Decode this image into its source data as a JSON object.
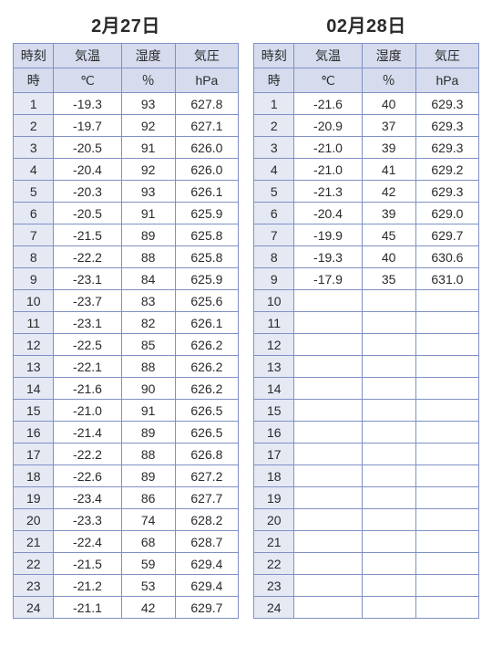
{
  "colors": {
    "border": "#7f91c4",
    "header_bg": "#d6dcee",
    "row_header_bg": "#e5e9f4",
    "text": "#2a2a2a",
    "background": "#ffffff"
  },
  "typography": {
    "title_fontsize_pt": 15,
    "cell_fontsize_pt": 10.5,
    "font_family": "Helvetica / Hiragino sans"
  },
  "columns": [
    {
      "key": "hour",
      "label": "時刻",
      "unit": "時",
      "width_pct": 18,
      "align": "center"
    },
    {
      "key": "temp",
      "label": "気温",
      "unit": "℃",
      "width_pct": 30,
      "align": "center"
    },
    {
      "key": "hum",
      "label": "湿度",
      "unit": "％",
      "width_pct": 24,
      "align": "center"
    },
    {
      "key": "press",
      "label": "気圧",
      "unit": "hPa",
      "width_pct": 28,
      "align": "center"
    }
  ],
  "hours_per_day": 24,
  "days": [
    {
      "title": "2月27日",
      "rows": [
        {
          "hour": 1,
          "temp": "-19.3",
          "hum": "93",
          "press": "627.8"
        },
        {
          "hour": 2,
          "temp": "-19.7",
          "hum": "92",
          "press": "627.1"
        },
        {
          "hour": 3,
          "temp": "-20.5",
          "hum": "91",
          "press": "626.0"
        },
        {
          "hour": 4,
          "temp": "-20.4",
          "hum": "92",
          "press": "626.0"
        },
        {
          "hour": 5,
          "temp": "-20.3",
          "hum": "93",
          "press": "626.1"
        },
        {
          "hour": 6,
          "temp": "-20.5",
          "hum": "91",
          "press": "625.9"
        },
        {
          "hour": 7,
          "temp": "-21.5",
          "hum": "89",
          "press": "625.8"
        },
        {
          "hour": 8,
          "temp": "-22.2",
          "hum": "88",
          "press": "625.8"
        },
        {
          "hour": 9,
          "temp": "-23.1",
          "hum": "84",
          "press": "625.9"
        },
        {
          "hour": 10,
          "temp": "-23.7",
          "hum": "83",
          "press": "625.6"
        },
        {
          "hour": 11,
          "temp": "-23.1",
          "hum": "82",
          "press": "626.1"
        },
        {
          "hour": 12,
          "temp": "-22.5",
          "hum": "85",
          "press": "626.2"
        },
        {
          "hour": 13,
          "temp": "-22.1",
          "hum": "88",
          "press": "626.2"
        },
        {
          "hour": 14,
          "temp": "-21.6",
          "hum": "90",
          "press": "626.2"
        },
        {
          "hour": 15,
          "temp": "-21.0",
          "hum": "91",
          "press": "626.5"
        },
        {
          "hour": 16,
          "temp": "-21.4",
          "hum": "89",
          "press": "626.5"
        },
        {
          "hour": 17,
          "temp": "-22.2",
          "hum": "88",
          "press": "626.8"
        },
        {
          "hour": 18,
          "temp": "-22.6",
          "hum": "89",
          "press": "627.2"
        },
        {
          "hour": 19,
          "temp": "-23.4",
          "hum": "86",
          "press": "627.7"
        },
        {
          "hour": 20,
          "temp": "-23.3",
          "hum": "74",
          "press": "628.2"
        },
        {
          "hour": 21,
          "temp": "-22.4",
          "hum": "68",
          "press": "628.7"
        },
        {
          "hour": 22,
          "temp": "-21.5",
          "hum": "59",
          "press": "629.4"
        },
        {
          "hour": 23,
          "temp": "-21.2",
          "hum": "53",
          "press": "629.4"
        },
        {
          "hour": 24,
          "temp": "-21.1",
          "hum": "42",
          "press": "629.7"
        }
      ]
    },
    {
      "title": "02月28日",
      "rows": [
        {
          "hour": 1,
          "temp": "-21.6",
          "hum": "40",
          "press": "629.3"
        },
        {
          "hour": 2,
          "temp": "-20.9",
          "hum": "37",
          "press": "629.3"
        },
        {
          "hour": 3,
          "temp": "-21.0",
          "hum": "39",
          "press": "629.3"
        },
        {
          "hour": 4,
          "temp": "-21.0",
          "hum": "41",
          "press": "629.2"
        },
        {
          "hour": 5,
          "temp": "-21.3",
          "hum": "42",
          "press": "629.3"
        },
        {
          "hour": 6,
          "temp": "-20.4",
          "hum": "39",
          "press": "629.0"
        },
        {
          "hour": 7,
          "temp": "-19.9",
          "hum": "45",
          "press": "629.7"
        },
        {
          "hour": 8,
          "temp": "-19.3",
          "hum": "40",
          "press": "630.6"
        },
        {
          "hour": 9,
          "temp": "-17.9",
          "hum": "35",
          "press": "631.0"
        },
        {
          "hour": 10,
          "temp": "",
          "hum": "",
          "press": ""
        },
        {
          "hour": 11,
          "temp": "",
          "hum": "",
          "press": ""
        },
        {
          "hour": 12,
          "temp": "",
          "hum": "",
          "press": ""
        },
        {
          "hour": 13,
          "temp": "",
          "hum": "",
          "press": ""
        },
        {
          "hour": 14,
          "temp": "",
          "hum": "",
          "press": ""
        },
        {
          "hour": 15,
          "temp": "",
          "hum": "",
          "press": ""
        },
        {
          "hour": 16,
          "temp": "",
          "hum": "",
          "press": ""
        },
        {
          "hour": 17,
          "temp": "",
          "hum": "",
          "press": ""
        },
        {
          "hour": 18,
          "temp": "",
          "hum": "",
          "press": ""
        },
        {
          "hour": 19,
          "temp": "",
          "hum": "",
          "press": ""
        },
        {
          "hour": 20,
          "temp": "",
          "hum": "",
          "press": ""
        },
        {
          "hour": 21,
          "temp": "",
          "hum": "",
          "press": ""
        },
        {
          "hour": 22,
          "temp": "",
          "hum": "",
          "press": ""
        },
        {
          "hour": 23,
          "temp": "",
          "hum": "",
          "press": ""
        },
        {
          "hour": 24,
          "temp": "",
          "hum": "",
          "press": ""
        }
      ]
    }
  ]
}
